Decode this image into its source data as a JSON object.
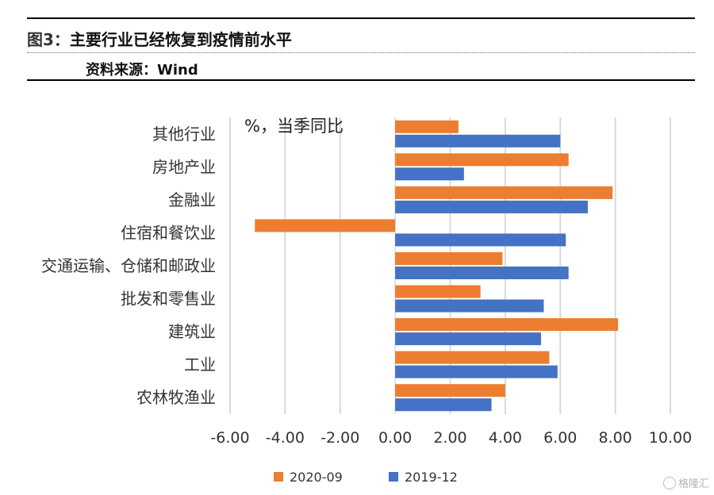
{
  "header": {
    "figure_label": "图3：",
    "title": "主要行业已经恢复到疫情前水平",
    "source": "资料来源：Wind"
  },
  "watermark": {
    "text": "格隆汇",
    "icon": "watermark-logo-icon"
  },
  "chart_data": {
    "type": "bar",
    "orientation": "horizontal",
    "title": "",
    "unit_label": "%，当季同比",
    "categories": [
      "其他行业",
      "房地产业",
      "金融业",
      "住宿和餐饮业",
      "交通运输、仓储和邮政业",
      "批发和零售业",
      "建筑业",
      "工业",
      "农林牧渔业"
    ],
    "series": [
      {
        "name": "2020-09",
        "color": "#ED7D31",
        "values": [
          2.3,
          6.3,
          7.9,
          -5.1,
          3.9,
          3.1,
          8.1,
          5.6,
          4.0
        ]
      },
      {
        "name": "2019-12",
        "color": "#4472C4",
        "values": [
          6.0,
          2.5,
          7.0,
          6.2,
          6.3,
          5.4,
          5.3,
          5.9,
          3.5
        ]
      }
    ],
    "xlim": [
      -6,
      10
    ],
    "xticks": [
      -6,
      -4,
      -2,
      0,
      2,
      4,
      6,
      8,
      10
    ],
    "xtick_labels": [
      "-6.00",
      "-4.00",
      "-2.00",
      "0.00",
      "2.00",
      "4.00",
      "6.00",
      "8.00",
      "10.00"
    ],
    "grid": "vertical",
    "legend_position": "bottom"
  }
}
